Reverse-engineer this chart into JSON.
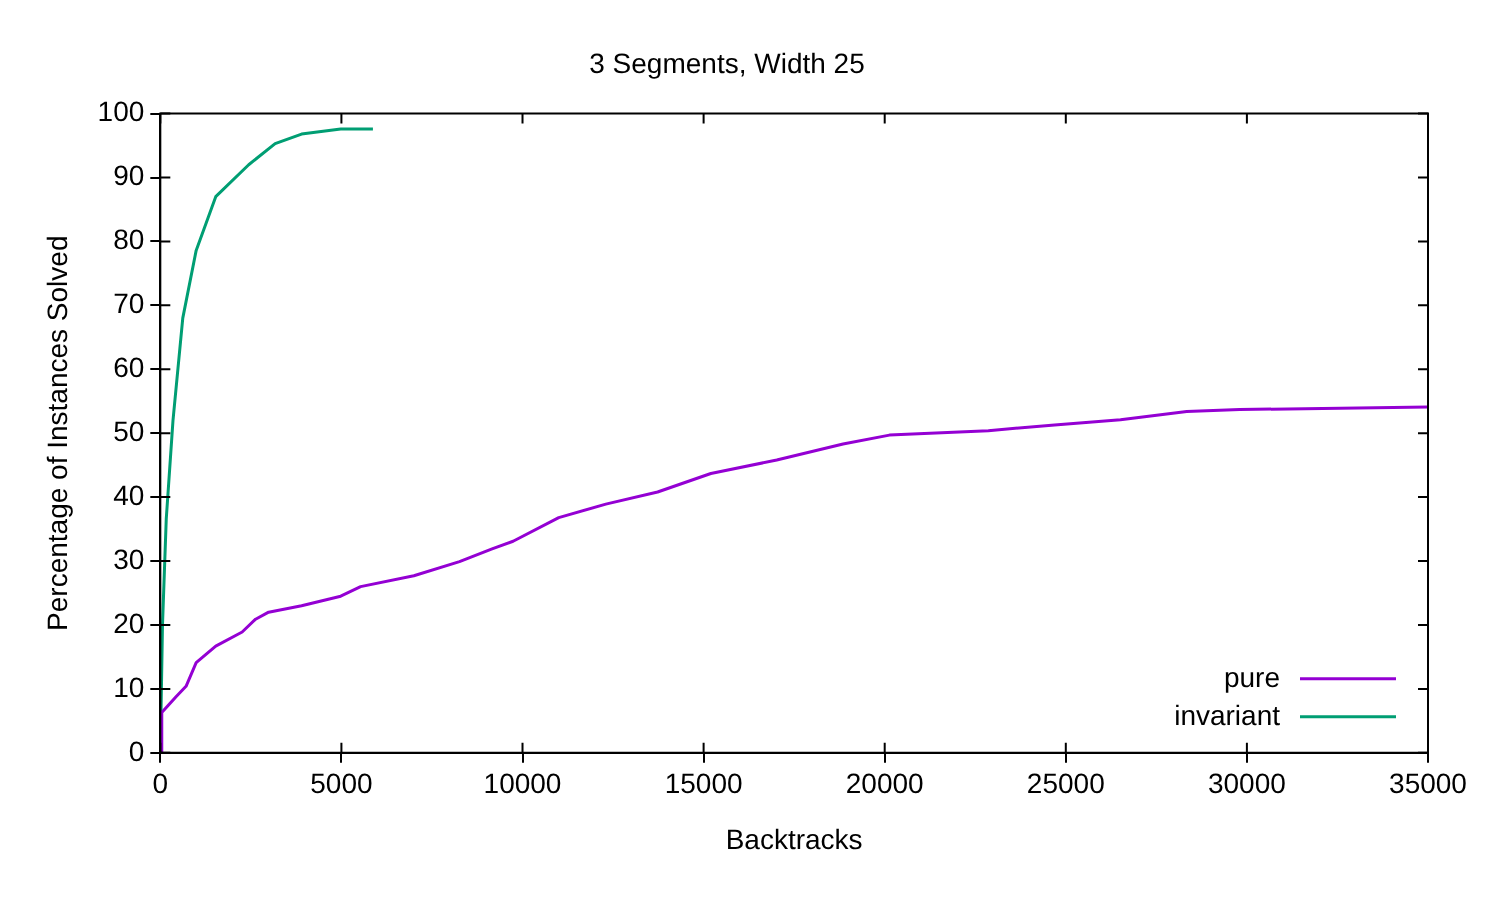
{
  "chart_data": {
    "type": "line",
    "title": "3 Segments, Width 25",
    "xlabel": "Backtracks",
    "ylabel": "Percentage of Instances Solved",
    "xlim": [
      0,
      35000
    ],
    "xticks": [
      0,
      5000,
      10000,
      15000,
      20000,
      25000,
      30000,
      35000
    ],
    "ylim": [
      0,
      100
    ],
    "yticks": [
      0,
      10,
      20,
      30,
      40,
      50,
      60,
      70,
      80,
      90,
      100
    ],
    "grid": false,
    "legend": "bottom right",
    "marker": "none",
    "line_style": "solid",
    "series": [
      {
        "name": "pure",
        "color": "#9400d3",
        "x": [
          0,
          40,
          440,
          710,
          990,
          1530,
          2260,
          2630,
          2990,
          3900,
          4980,
          5530,
          7000,
          8260,
          9160,
          9740,
          11000,
          12300,
          13730,
          15200,
          17020,
          18850,
          20130,
          22860,
          24690,
          26510,
          28340,
          29800,
          35000
        ],
        "values": [
          0,
          6.3,
          8.8,
          10.4,
          14.1,
          16.7,
          18.9,
          20.9,
          22,
          23,
          24.5,
          26,
          27.7,
          29.9,
          31.9,
          33.1,
          36.8,
          38.9,
          40.8,
          43.7,
          45.8,
          48.3,
          49.7,
          50.4,
          51.3,
          52.1,
          53.4,
          53.7,
          54.1
        ]
      },
      {
        "name": "invariant",
        "color": "#009e73",
        "x": [
          0,
          60,
          164,
          350,
          620,
          990,
          1530,
          2440,
          3170,
          3900,
          4980,
          5870
        ],
        "values": [
          0,
          20,
          36.6,
          52,
          68,
          78.6,
          87,
          92,
          95.3,
          96.8,
          97.6,
          97.6
        ]
      }
    ]
  }
}
